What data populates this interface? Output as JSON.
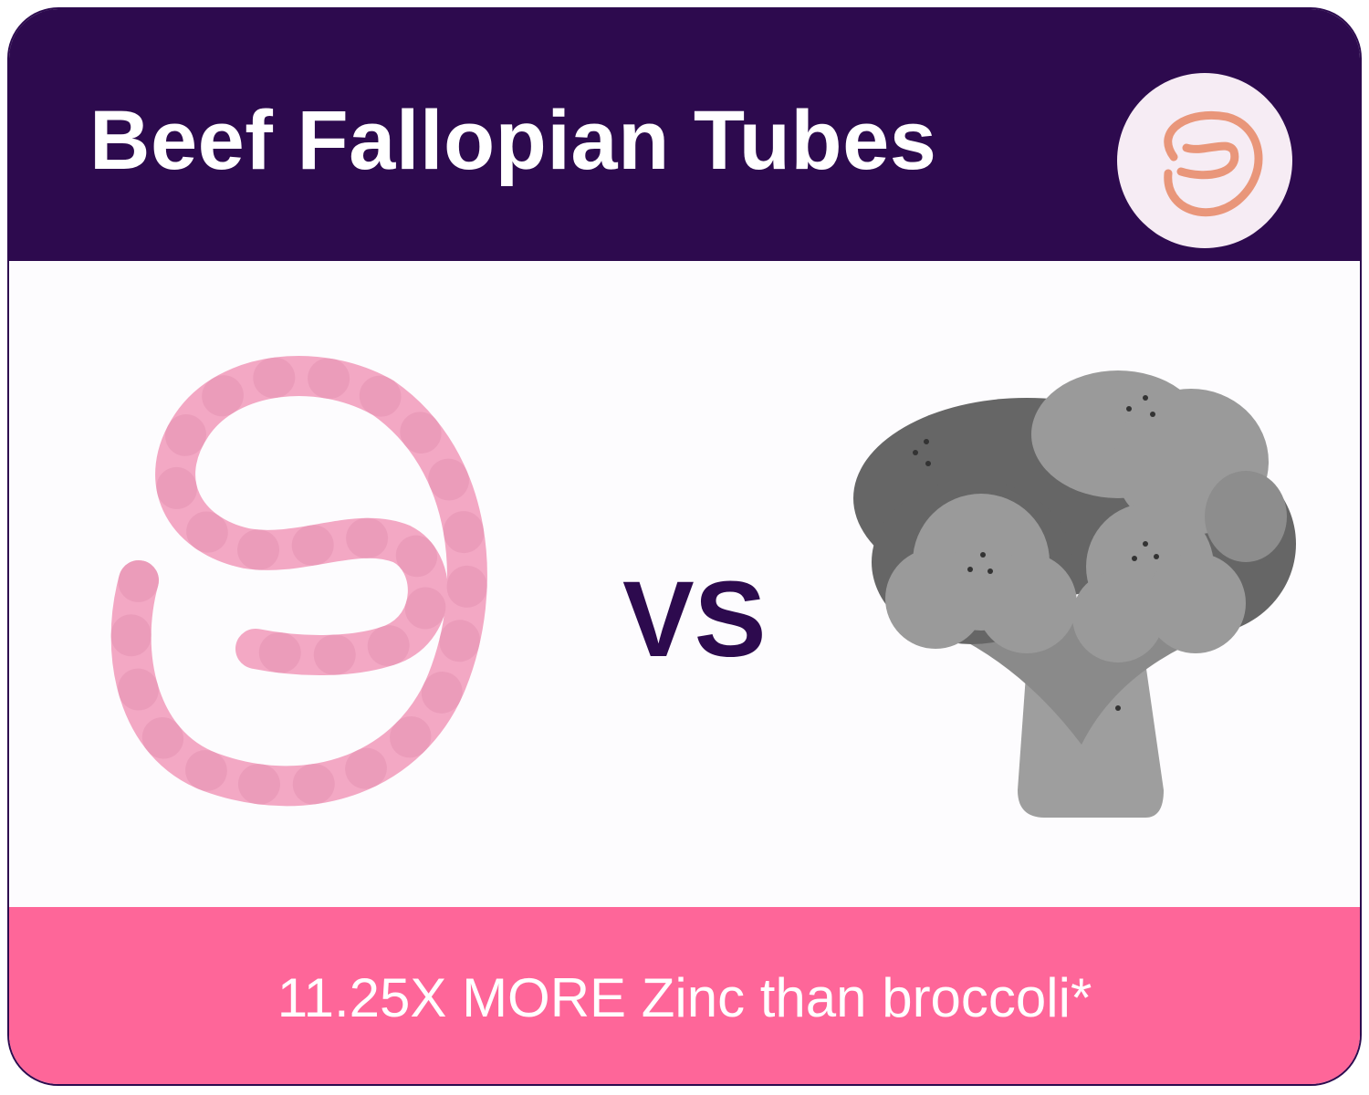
{
  "header": {
    "title": "Beef Fallopian Tubes",
    "badge_icon": "worm-icon"
  },
  "main": {
    "left_icon": "worm-icon",
    "separator": "VS",
    "right_icon": "broccoli-icon"
  },
  "footer": {
    "caption": "11.25X MORE Zinc than broccoli*"
  },
  "colors": {
    "header": "#2d0a4e",
    "footer": "#fe6699",
    "worm": "#f4a7c3",
    "badge_worm": "#e9967a",
    "broccoli_dark": "#6b6b6b",
    "broccoli_light": "#9a9a9a"
  }
}
